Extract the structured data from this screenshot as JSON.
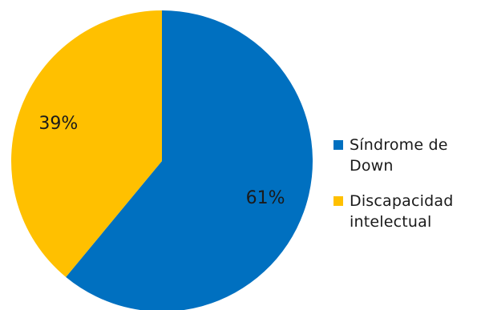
{
  "chart_data": {
    "type": "pie",
    "title": "",
    "slices": [
      {
        "name": "Síndrome de Down",
        "value": 61,
        "label": "61%",
        "color": "#0070C0"
      },
      {
        "name": "Discapacidad intelectual",
        "value": 39,
        "label": "39%",
        "color": "#FFC000"
      }
    ],
    "legend": {
      "position": "right",
      "items": [
        {
          "text": "Síndrome de Down",
          "color": "#0070C0"
        },
        {
          "text": "Discapacidad intelectual",
          "color": "#FFC000"
        }
      ]
    }
  }
}
